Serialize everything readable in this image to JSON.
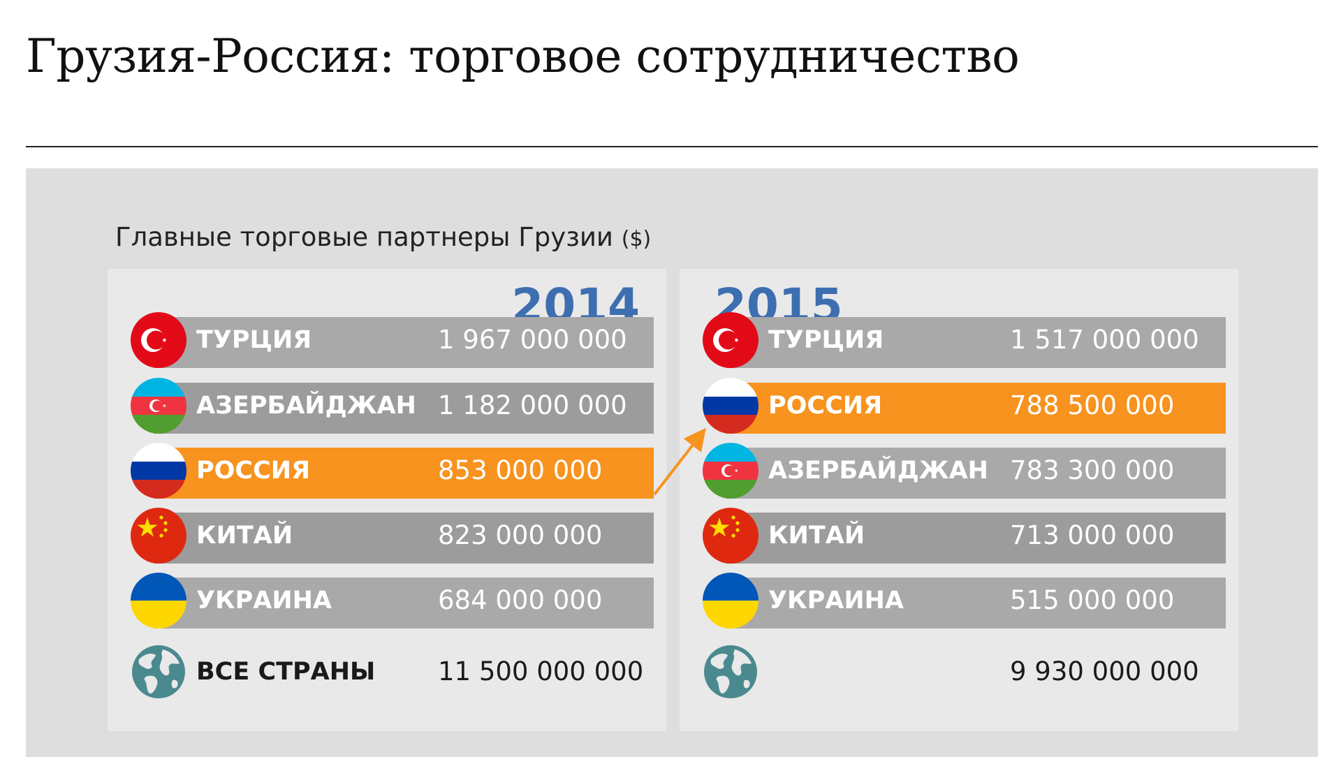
{
  "title": "Грузия-Россия: торговое сотрудничество",
  "colors": {
    "highlight": "#f7931e",
    "bar": "#a9a9a9",
    "bar_alt": "#9c9c9c",
    "year": "#3d6fb0",
    "panel": "#dedede",
    "card": "#e9e9ea"
  },
  "chart_data": [
    {
      "type": "table",
      "title": "Главные торговые партнеры Грузии",
      "unit": "($)",
      "year": "2014",
      "rows": [
        {
          "name": "ТУРЦИЯ",
          "value": "1 967 000 000",
          "flag": "turkey-flag-icon"
        },
        {
          "name": "АЗЕРБАЙДЖАН",
          "value": "1 182 000 000",
          "flag": "azerbaijan-flag-icon"
        },
        {
          "name": "РОССИЯ",
          "value": "853 000 000",
          "flag": "russia-flag-icon",
          "highlight": true
        },
        {
          "name": "КИТАЙ",
          "value": "823 000 000",
          "flag": "china-flag-icon"
        },
        {
          "name": "УКРАИНА",
          "value": "684 000 000",
          "flag": "ukraine-flag-icon"
        }
      ],
      "total": {
        "name": "ВСЕ СТРАНЫ",
        "value": "11 500 000 000",
        "icon": "globe-icon"
      }
    },
    {
      "type": "table",
      "year": "2015",
      "rows": [
        {
          "name": "ТУРЦИЯ",
          "value": "1 517 000 000",
          "flag": "turkey-flag-icon"
        },
        {
          "name": "РОССИЯ",
          "value": "788 500 000",
          "flag": "russia-flag-icon",
          "highlight": true
        },
        {
          "name": "АЗЕРБАЙДЖАН",
          "value": "783 300 000",
          "flag": "azerbaijan-flag-icon"
        },
        {
          "name": "КИТАЙ",
          "value": "713 000 000",
          "flag": "china-flag-icon"
        },
        {
          "name": "УКРАИНА",
          "value": "515 000 000",
          "flag": "ukraine-flag-icon"
        }
      ],
      "total": {
        "name": "",
        "value": "9 930 000 000",
        "icon": "globe-icon"
      }
    }
  ]
}
